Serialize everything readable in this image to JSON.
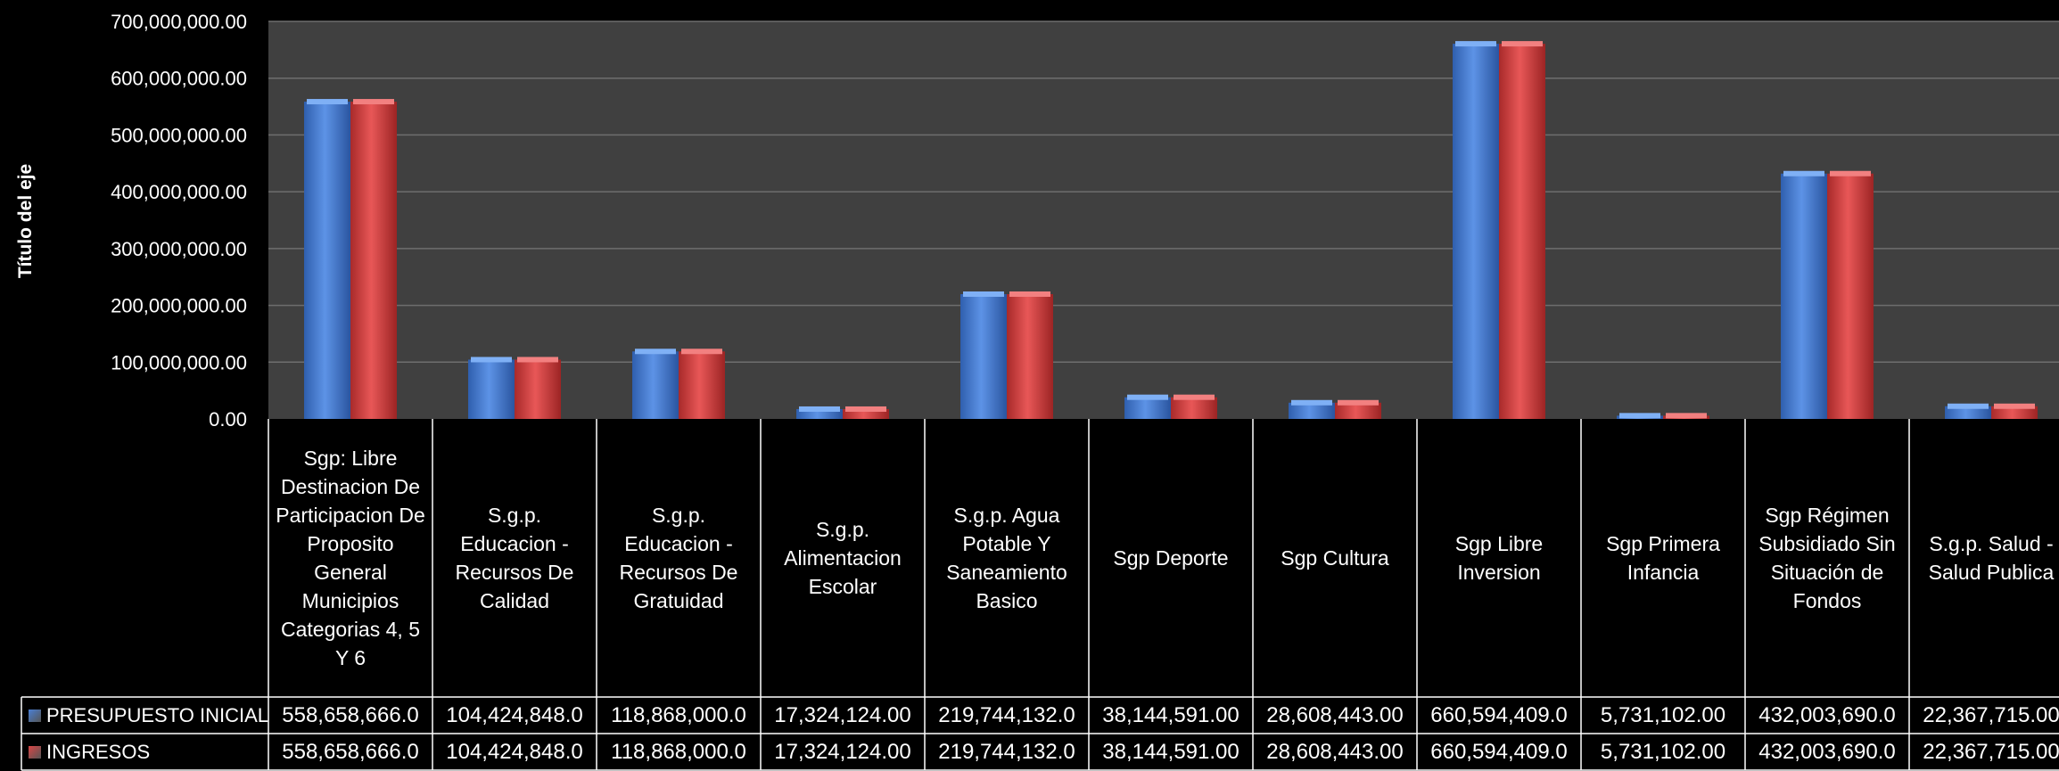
{
  "chart_data": {
    "type": "bar",
    "title": "",
    "xlabel": "",
    "ylabel": "Título del eje",
    "ylim": [
      0,
      700000000
    ],
    "y_ticks": [
      "0.00",
      "100,000,000.00",
      "200,000,000.00",
      "300,000,000.00",
      "400,000,000.00",
      "500,000,000.00",
      "600,000,000.00",
      "700,000,000.00"
    ],
    "grid": true,
    "legend_position": "data-table-left",
    "categories": [
      "Sgp: Libre Destinacion De Participacion De Proposito General Municipios Categorias 4, 5 Y 6",
      "S.g.p. Educacion - Recursos De Calidad",
      "S.g.p. Educacion - Recursos De Gratuidad",
      "S.g.p. Alimentacion Escolar",
      "S.g.p. Agua Potable Y Saneamiento Basico",
      "Sgp Deporte",
      "Sgp Cultura",
      "Sgp Libre Inversion",
      "Sgp Primera Infancia",
      "Sgp Régimen Subsidiado Sin Situación de Fondos",
      "S.g.p. Salud - Salud Publica"
    ],
    "series": [
      {
        "name": "PRESUPUESTO INICIAL",
        "color": "#4a7fd4",
        "values": [
          558658666,
          104424848,
          118868000,
          17324124,
          219744132,
          38144591,
          28608443,
          660594409,
          5731102,
          432003690,
          22367715
        ],
        "labels": [
          "558,658,666.0",
          "104,424,848.0",
          "118,868,000.0",
          "17,324,124.00",
          "219,744,132.0",
          "38,144,591.00",
          "28,608,443.00",
          "660,594,409.0",
          "5,731,102.00",
          "432,003,690.0",
          "22,367,715.00"
        ]
      },
      {
        "name": "INGRESOS",
        "color": "#d94545",
        "values": [
          558658666,
          104424848,
          118868000,
          17324124,
          219744132,
          38144591,
          28608443,
          660594409,
          5731102,
          432003690,
          22367715
        ],
        "labels": [
          "558,658,666.0",
          "104,424,848.0",
          "118,868,000.0",
          "17,324,124.00",
          "219,744,132.0",
          "38,144,591.00",
          "28,608,443.00",
          "660,594,409.0",
          "5,731,102.00",
          "432,003,690.0",
          "22,367,715.00"
        ]
      }
    ]
  }
}
